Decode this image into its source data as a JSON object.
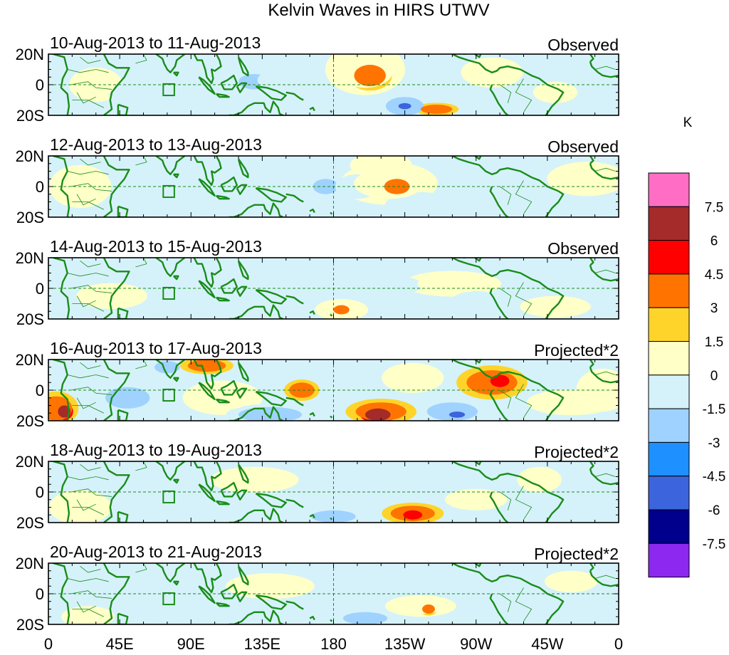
{
  "title": "Kelvin Waves in HIRS UTWV",
  "units": "K",
  "lat_labels": [
    "20N",
    "0",
    "20S"
  ],
  "lon_labels": [
    "0",
    "45E",
    "90E",
    "135E",
    "180",
    "135W",
    "90W",
    "45W",
    "0"
  ],
  "panels": [
    {
      "dates": "10-Aug-2013 to 11-Aug-2013",
      "kind": "Observed"
    },
    {
      "dates": "12-Aug-2013 to 13-Aug-2013",
      "kind": "Observed"
    },
    {
      "dates": "14-Aug-2013 to 15-Aug-2013",
      "kind": "Observed"
    },
    {
      "dates": "16-Aug-2013 to 17-Aug-2013",
      "kind": "Projected*2"
    },
    {
      "dates": "18-Aug-2013 to 19-Aug-2013",
      "kind": "Projected*2"
    },
    {
      "dates": "20-Aug-2013 to 21-Aug-2013",
      "kind": "Projected*2"
    }
  ],
  "colorbar": {
    "colors": [
      "#ff6ec4",
      "#a52a2a",
      "#ff0000",
      "#ff7400",
      "#ffd42a",
      "#ffffc8",
      "#d5f2fa",
      "#a0d2ff",
      "#1e90ff",
      "#3c64dc",
      "#00008c",
      "#8c28f0"
    ],
    "labels": [
      "7.5",
      "6",
      "4.5",
      "3",
      "1.5",
      "0",
      "-1.5",
      "-3",
      "-4.5",
      "-6",
      "-7.5"
    ]
  },
  "colors": {
    "coast": "#1a8c1a",
    "background": "#d5f2fa",
    "dash": "#1a8c1a"
  },
  "anomalies": [
    [
      {
        "lon": 30,
        "lat": 0,
        "v": 1,
        "rx": 12,
        "ry": 8
      },
      {
        "lon": 60,
        "lat": -5,
        "v": -1,
        "rx": 16,
        "ry": 6
      },
      {
        "lon": 130,
        "lat": 2,
        "v": -3,
        "rx": 10,
        "ry": 5
      },
      {
        "lon": 150,
        "lat": 3,
        "v": -1,
        "rx": 18,
        "ry": 8
      },
      {
        "lon": 200,
        "lat": 10,
        "v": 1,
        "rx": 18,
        "ry": 12
      },
      {
        "lon": 203,
        "lat": 6,
        "v": 3,
        "rx": 10,
        "ry": 7
      },
      {
        "lon": 225,
        "lat": -14,
        "v": -3,
        "rx": 12,
        "ry": 6
      },
      {
        "lon": 225,
        "lat": -14,
        "v": -6,
        "rx": 4,
        "ry": 2
      },
      {
        "lon": 245,
        "lat": -16,
        "v": 3,
        "rx": 10,
        "ry": 3
      },
      {
        "lon": 280,
        "lat": 8,
        "v": 1,
        "rx": 14,
        "ry": 7
      },
      {
        "lon": 320,
        "lat": -5,
        "v": 1,
        "rx": 10,
        "ry": 5
      },
      {
        "lon": 355,
        "lat": 8,
        "v": -1,
        "rx": 14,
        "ry": 8
      }
    ],
    [
      {
        "lon": 20,
        "lat": 0,
        "v": 1,
        "rx": 14,
        "ry": 10
      },
      {
        "lon": 80,
        "lat": 10,
        "v": -1,
        "rx": 20,
        "ry": 8
      },
      {
        "lon": 175,
        "lat": 0,
        "v": -3,
        "rx": 8,
        "ry": 5
      },
      {
        "lon": 195,
        "lat": 0,
        "v": -1,
        "rx": 14,
        "ry": 8
      },
      {
        "lon": 215,
        "lat": 2,
        "v": 1,
        "rx": 22,
        "ry": 10
      },
      {
        "lon": 220,
        "lat": 0,
        "v": 3,
        "rx": 8,
        "ry": 5
      },
      {
        "lon": 210,
        "lat": 14,
        "v": 1,
        "rx": 14,
        "ry": 6
      },
      {
        "lon": 235,
        "lat": -12,
        "v": -1,
        "rx": 16,
        "ry": 6
      },
      {
        "lon": 280,
        "lat": -5,
        "v": -1,
        "rx": 12,
        "ry": 6
      },
      {
        "lon": 340,
        "lat": 5,
        "v": 1,
        "rx": 18,
        "ry": 8
      }
    ],
    [
      {
        "lon": 40,
        "lat": -5,
        "v": 1,
        "rx": 16,
        "ry": 6
      },
      {
        "lon": 160,
        "lat": 5,
        "v": -1,
        "rx": 16,
        "ry": 8
      },
      {
        "lon": 185,
        "lat": -14,
        "v": 1,
        "rx": 12,
        "ry": 5
      },
      {
        "lon": 185,
        "lat": -14,
        "v": 3,
        "rx": 5,
        "ry": 3
      },
      {
        "lon": 220,
        "lat": 2,
        "v": -1,
        "rx": 16,
        "ry": 6
      },
      {
        "lon": 255,
        "lat": 3,
        "v": 1,
        "rx": 22,
        "ry": 6
      },
      {
        "lon": 270,
        "lat": -10,
        "v": -1,
        "rx": 12,
        "ry": 6
      },
      {
        "lon": 320,
        "lat": -12,
        "v": 1,
        "rx": 16,
        "ry": 5
      },
      {
        "lon": 350,
        "lat": 5,
        "v": -1,
        "rx": 10,
        "ry": 8
      }
    ],
    [
      {
        "lon": 5,
        "lat": -12,
        "v": 3,
        "rx": 10,
        "ry": 8
      },
      {
        "lon": 10,
        "lat": -14,
        "v": 6,
        "rx": 4,
        "ry": 4
      },
      {
        "lon": 45,
        "lat": 15,
        "v": -1,
        "rx": 14,
        "ry": 6
      },
      {
        "lon": 50,
        "lat": -5,
        "v": -3,
        "rx": 14,
        "ry": 7
      },
      {
        "lon": 75,
        "lat": 15,
        "v": -3,
        "rx": 8,
        "ry": 4
      },
      {
        "lon": 100,
        "lat": 16,
        "v": 3,
        "rx": 12,
        "ry": 4
      },
      {
        "lon": 110,
        "lat": -5,
        "v": 1,
        "rx": 18,
        "ry": 8
      },
      {
        "lon": 140,
        "lat": -16,
        "v": -3,
        "rx": 20,
        "ry": 5
      },
      {
        "lon": 160,
        "lat": 0,
        "v": 3,
        "rx": 8,
        "ry": 5
      },
      {
        "lon": 210,
        "lat": -14,
        "v": 3,
        "rx": 16,
        "ry": 6
      },
      {
        "lon": 208,
        "lat": -16,
        "v": 6,
        "rx": 8,
        "ry": 4
      },
      {
        "lon": 230,
        "lat": 8,
        "v": 1,
        "rx": 14,
        "ry": 7
      },
      {
        "lon": 255,
        "lat": -14,
        "v": -3,
        "rx": 16,
        "ry": 6
      },
      {
        "lon": 258,
        "lat": -16,
        "v": -6,
        "rx": 5,
        "ry": 2
      },
      {
        "lon": 280,
        "lat": 5,
        "v": 3,
        "rx": 16,
        "ry": 8
      },
      {
        "lon": 285,
        "lat": 6,
        "v": 4.5,
        "rx": 6,
        "ry": 4
      },
      {
        "lon": 330,
        "lat": -8,
        "v": 1,
        "rx": 20,
        "ry": 6
      },
      {
        "lon": 350,
        "lat": 0,
        "v": 1,
        "rx": 12,
        "ry": 10
      }
    ],
    [
      {
        "lon": 20,
        "lat": -10,
        "v": 1,
        "rx": 14,
        "ry": 8
      },
      {
        "lon": 60,
        "lat": 5,
        "v": -1,
        "rx": 20,
        "ry": 8
      },
      {
        "lon": 130,
        "lat": 8,
        "v": 1,
        "rx": 20,
        "ry": 6
      },
      {
        "lon": 180,
        "lat": -16,
        "v": -3,
        "rx": 14,
        "ry": 4
      },
      {
        "lon": 210,
        "lat": 3,
        "v": -1,
        "rx": 22,
        "ry": 6
      },
      {
        "lon": 230,
        "lat": -14,
        "v": 3,
        "rx": 14,
        "ry": 5
      },
      {
        "lon": 230,
        "lat": -15,
        "v": 4.5,
        "rx": 6,
        "ry": 3
      },
      {
        "lon": 270,
        "lat": -5,
        "v": 1,
        "rx": 14,
        "ry": 5
      },
      {
        "lon": 310,
        "lat": 8,
        "v": 1,
        "rx": 10,
        "ry": 6
      },
      {
        "lon": 345,
        "lat": -8,
        "v": -1,
        "rx": 12,
        "ry": 6
      }
    ],
    [
      {
        "lon": 25,
        "lat": -15,
        "v": 1,
        "rx": 12,
        "ry": 5
      },
      {
        "lon": 60,
        "lat": 2,
        "v": -1,
        "rx": 18,
        "ry": 6
      },
      {
        "lon": 140,
        "lat": 5,
        "v": 1,
        "rx": 20,
        "ry": 6
      },
      {
        "lon": 200,
        "lat": -16,
        "v": -3,
        "rx": 14,
        "ry": 4
      },
      {
        "lon": 235,
        "lat": -8,
        "v": 1,
        "rx": 16,
        "ry": 5
      },
      {
        "lon": 240,
        "lat": -10,
        "v": 3,
        "rx": 4,
        "ry": 3
      },
      {
        "lon": 290,
        "lat": 6,
        "v": -1,
        "rx": 14,
        "ry": 6
      },
      {
        "lon": 330,
        "lat": 8,
        "v": 1,
        "rx": 12,
        "ry": 5
      }
    ]
  ]
}
